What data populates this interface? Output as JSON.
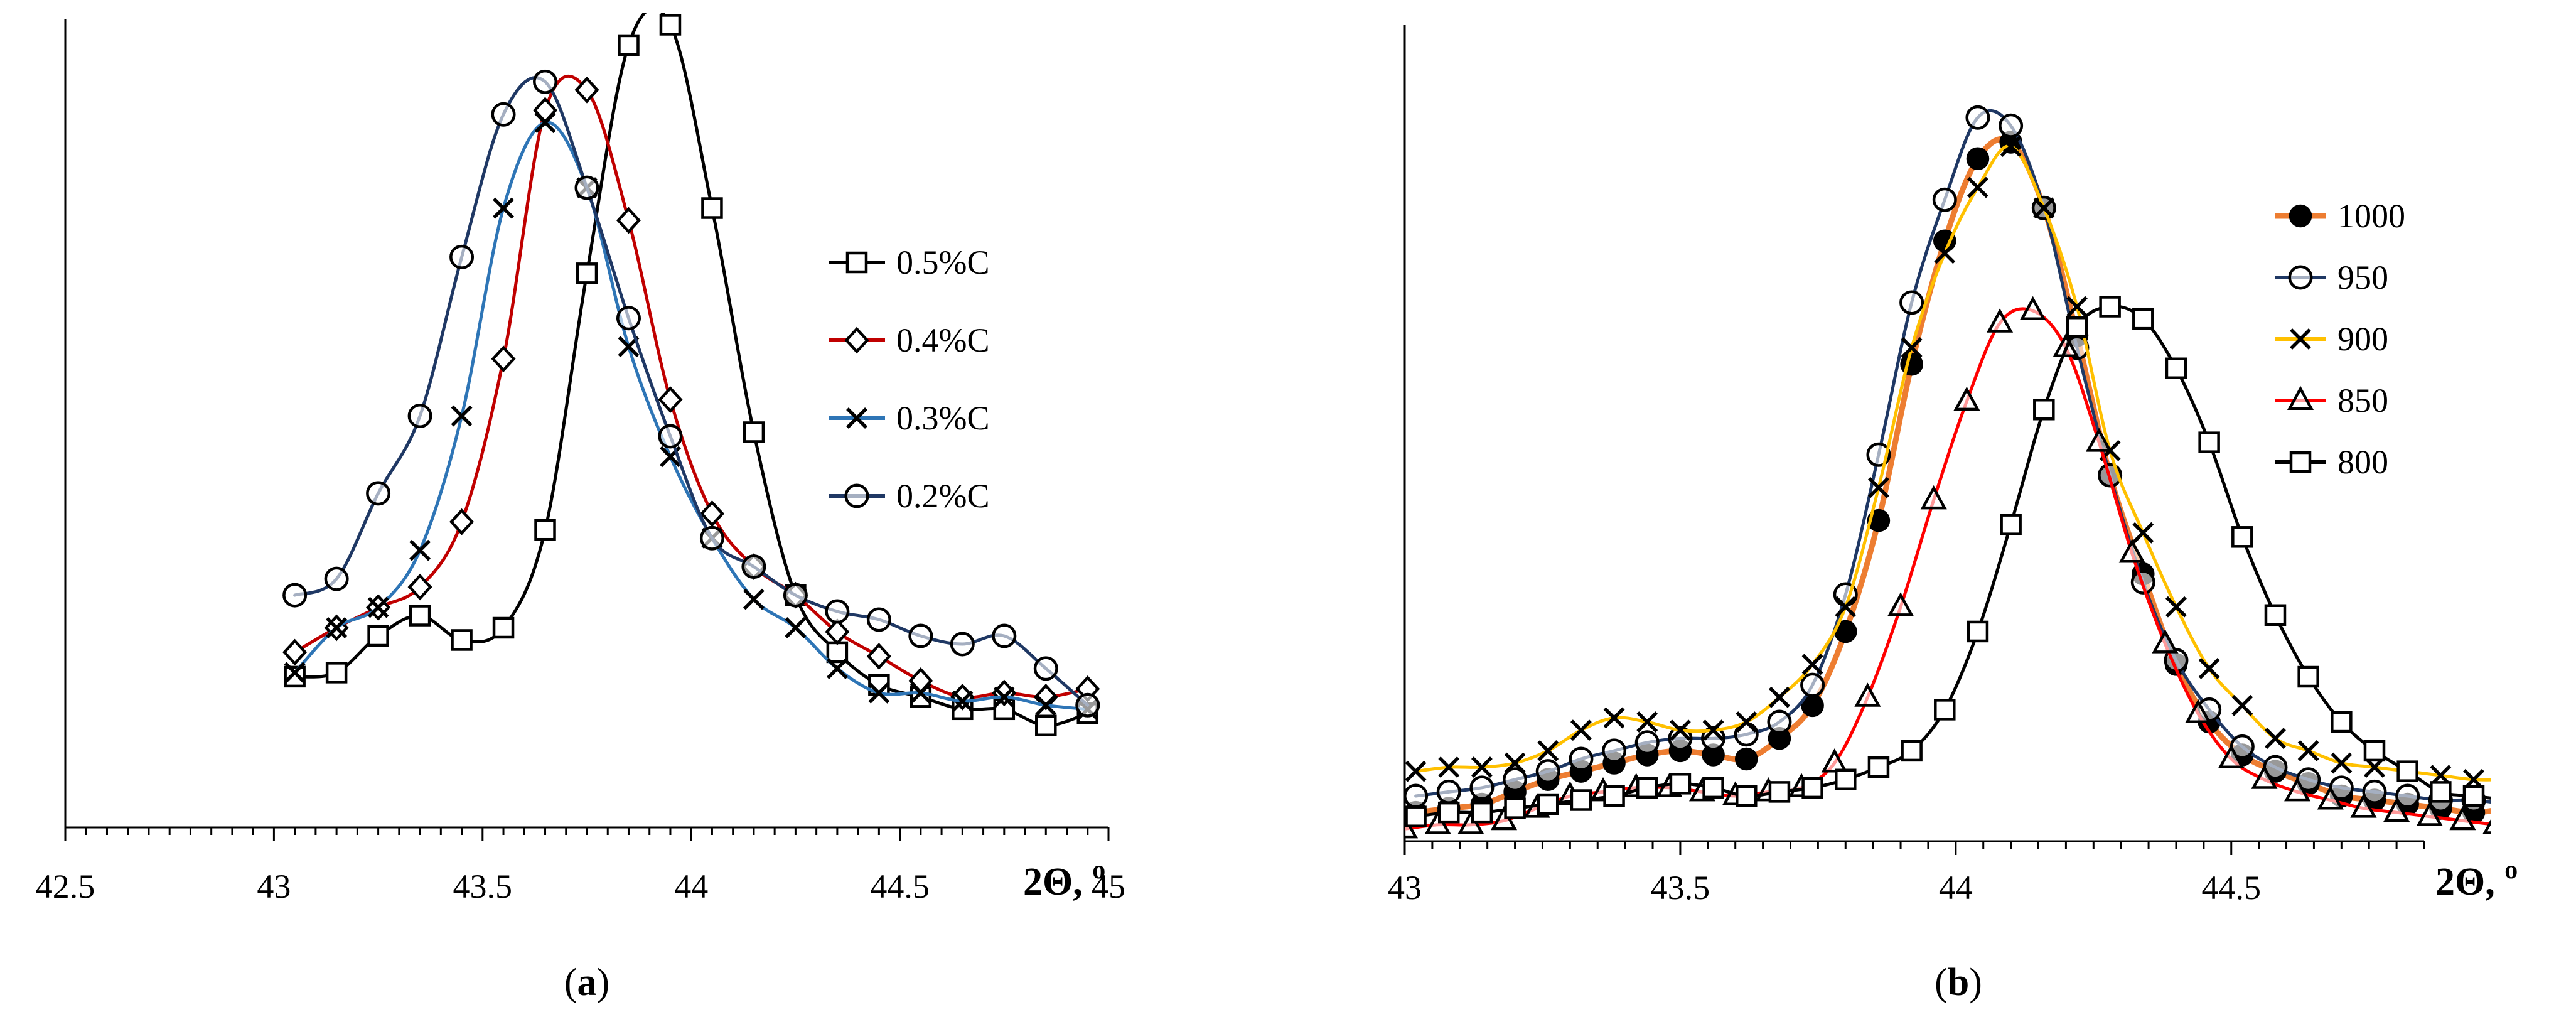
{
  "chart_data": [
    {
      "id": "a",
      "type": "line",
      "caption_letter": "a",
      "xlabel": "2Θ, ",
      "xlabel_unit": "o",
      "xlim": [
        42.5,
        45.0
      ],
      "ylim": [
        0,
        1.0
      ],
      "xticks": [
        42.5,
        43,
        43.5,
        44,
        44.5,
        45
      ],
      "xtick_labels": [
        "42.5",
        "43",
        "43.5",
        "44",
        "44.5",
        "45"
      ],
      "legend_position": "right",
      "series": [
        {
          "name": "0.5%C",
          "color": "#000000",
          "marker": "square",
          "x": [
            43.05,
            43.15,
            43.25,
            43.35,
            43.45,
            43.55,
            43.65,
            43.75,
            43.85,
            43.95,
            44.05,
            44.15,
            44.25,
            44.35,
            44.45,
            44.55,
            44.65,
            44.75,
            44.85,
            44.95
          ],
          "y": [
            0.185,
            0.19,
            0.235,
            0.26,
            0.23,
            0.245,
            0.365,
            0.68,
            0.96,
            0.985,
            0.76,
            0.485,
            0.285,
            0.215,
            0.175,
            0.16,
            0.145,
            0.145,
            0.125,
            0.14
          ]
        },
        {
          "name": "0.4%C",
          "color": "#c00000",
          "marker": "diamond",
          "x": [
            43.05,
            43.15,
            43.25,
            43.35,
            43.45,
            43.55,
            43.65,
            43.75,
            43.85,
            43.95,
            44.05,
            44.15,
            44.25,
            44.35,
            44.45,
            44.55,
            44.65,
            44.75,
            44.85,
            44.95
          ],
          "y": [
            0.215,
            0.245,
            0.27,
            0.295,
            0.375,
            0.575,
            0.88,
            0.905,
            0.745,
            0.525,
            0.385,
            0.32,
            0.285,
            0.24,
            0.21,
            0.18,
            0.16,
            0.165,
            0.16,
            0.17
          ]
        },
        {
          "name": "0.3%C",
          "color": "#2e75b6",
          "marker": "x",
          "x": [
            43.05,
            43.15,
            43.25,
            43.35,
            43.45,
            43.55,
            43.65,
            43.75,
            43.85,
            43.95,
            44.05,
            44.15,
            44.25,
            44.35,
            44.45,
            44.55,
            44.65,
            44.75,
            44.85,
            44.95
          ],
          "y": [
            0.19,
            0.245,
            0.27,
            0.34,
            0.505,
            0.76,
            0.865,
            0.785,
            0.59,
            0.455,
            0.355,
            0.28,
            0.245,
            0.195,
            0.165,
            0.165,
            0.155,
            0.16,
            0.15,
            0.145
          ]
        },
        {
          "name": "0.2%C",
          "color": "#1f3864",
          "marker": "circle",
          "x": [
            43.05,
            43.15,
            43.25,
            43.35,
            43.45,
            43.55,
            43.65,
            43.75,
            43.85,
            43.95,
            44.05,
            44.15,
            44.25,
            44.35,
            44.45,
            44.55,
            44.65,
            44.75,
            44.85,
            44.95
          ],
          "y": [
            0.285,
            0.305,
            0.41,
            0.505,
            0.7,
            0.875,
            0.915,
            0.785,
            0.625,
            0.48,
            0.355,
            0.32,
            0.285,
            0.265,
            0.255,
            0.235,
            0.225,
            0.235,
            0.195,
            0.15
          ]
        }
      ]
    },
    {
      "id": "b",
      "type": "line",
      "caption_letter": "b",
      "xlabel": "2Θ, ",
      "xlabel_unit": "o",
      "xlim": [
        43.0,
        44.85
      ],
      "ylim": [
        0,
        1.0
      ],
      "xticks": [
        43,
        43.5,
        44,
        44.5
      ],
      "xtick_labels": [
        "43",
        "43.5",
        "44",
        "44.5"
      ],
      "legend_position": "right",
      "series": [
        {
          "name": "1000",
          "color": "#ed7d31",
          "marker": "filled-circle",
          "line_width": 9,
          "x": [
            43.02,
            43.08,
            43.14,
            43.2,
            43.26,
            43.32,
            43.38,
            43.44,
            43.5,
            43.56,
            43.62,
            43.68,
            43.74,
            43.8,
            43.86,
            43.92,
            43.98,
            44.04,
            44.1,
            44.16,
            44.22,
            44.28,
            44.34,
            44.4,
            44.46,
            44.52,
            44.58,
            44.64,
            44.7,
            44.76,
            44.82,
            44.88,
            44.94,
            45.0
          ],
          "y": [
            0.035,
            0.04,
            0.045,
            0.06,
            0.075,
            0.085,
            0.095,
            0.105,
            0.11,
            0.105,
            0.1,
            0.125,
            0.165,
            0.255,
            0.39,
            0.58,
            0.73,
            0.83,
            0.85,
            0.77,
            0.615,
            0.445,
            0.325,
            0.215,
            0.145,
            0.105,
            0.085,
            0.07,
            0.055,
            0.05,
            0.045,
            0.04,
            0.035,
            0.04
          ]
        },
        {
          "name": "950",
          "color": "#1f3864",
          "marker": "circle",
          "x": [
            43.02,
            43.08,
            43.14,
            43.2,
            43.26,
            43.32,
            43.38,
            43.44,
            43.5,
            43.56,
            43.62,
            43.68,
            43.74,
            43.8,
            43.86,
            43.92,
            43.98,
            44.04,
            44.1,
            44.16,
            44.22,
            44.28,
            44.34,
            44.4,
            44.46,
            44.52,
            44.58,
            44.64,
            44.7,
            44.76,
            44.82,
            44.88,
            44.94,
            45.0
          ],
          "y": [
            0.055,
            0.06,
            0.065,
            0.075,
            0.085,
            0.1,
            0.11,
            0.12,
            0.125,
            0.125,
            0.13,
            0.145,
            0.19,
            0.3,
            0.47,
            0.655,
            0.78,
            0.88,
            0.87,
            0.77,
            0.6,
            0.445,
            0.315,
            0.22,
            0.16,
            0.115,
            0.09,
            0.075,
            0.065,
            0.06,
            0.055,
            0.05,
            0.05,
            0.045
          ]
        },
        {
          "name": "900",
          "color": "#ffc000",
          "marker": "x",
          "x": [
            43.02,
            43.08,
            43.14,
            43.2,
            43.26,
            43.32,
            43.38,
            43.44,
            43.5,
            43.56,
            43.62,
            43.68,
            43.74,
            43.8,
            43.86,
            43.92,
            43.98,
            44.04,
            44.1,
            44.16,
            44.22,
            44.28,
            44.34,
            44.4,
            44.46,
            44.52,
            44.58,
            44.64,
            44.7,
            44.76,
            44.82,
            44.88,
            44.94,
            45.0
          ],
          "y": [
            0.085,
            0.09,
            0.09,
            0.095,
            0.11,
            0.135,
            0.15,
            0.145,
            0.135,
            0.135,
            0.145,
            0.175,
            0.215,
            0.285,
            0.43,
            0.6,
            0.715,
            0.795,
            0.845,
            0.77,
            0.65,
            0.475,
            0.375,
            0.285,
            0.21,
            0.165,
            0.125,
            0.11,
            0.095,
            0.09,
            0.085,
            0.08,
            0.075,
            0.075
          ]
        },
        {
          "name": "850",
          "color": "#ff0000",
          "marker": "triangle",
          "x": [
            43.0,
            43.06,
            43.12,
            43.18,
            43.24,
            43.3,
            43.36,
            43.42,
            43.48,
            43.54,
            43.6,
            43.66,
            43.72,
            43.78,
            43.84,
            43.9,
            43.96,
            44.02,
            44.08,
            44.14,
            44.2,
            44.26,
            44.32,
            44.38,
            44.44,
            44.5,
            44.56,
            44.62,
            44.68,
            44.74,
            44.8,
            44.86,
            44.92,
            44.98
          ],
          "y": [
            0.015,
            0.02,
            0.02,
            0.025,
            0.04,
            0.055,
            0.06,
            0.065,
            0.065,
            0.06,
            0.055,
            0.06,
            0.065,
            0.095,
            0.175,
            0.285,
            0.415,
            0.535,
            0.63,
            0.645,
            0.6,
            0.485,
            0.35,
            0.24,
            0.155,
            0.1,
            0.075,
            0.06,
            0.05,
            0.04,
            0.035,
            0.03,
            0.025,
            0.02
          ]
        },
        {
          "name": "800",
          "color": "#000000",
          "marker": "square",
          "x": [
            43.02,
            43.08,
            43.14,
            43.2,
            43.26,
            43.32,
            43.38,
            43.44,
            43.5,
            43.56,
            43.62,
            43.68,
            43.74,
            43.8,
            43.86,
            43.92,
            43.98,
            44.04,
            44.1,
            44.16,
            44.22,
            44.28,
            44.34,
            44.4,
            44.46,
            44.52,
            44.58,
            44.64,
            44.7,
            44.76,
            44.82,
            44.88,
            44.94,
            45.0
          ],
          "y": [
            0.03,
            0.035,
            0.035,
            0.04,
            0.045,
            0.05,
            0.055,
            0.065,
            0.07,
            0.065,
            0.055,
            0.06,
            0.065,
            0.075,
            0.09,
            0.11,
            0.16,
            0.255,
            0.385,
            0.525,
            0.625,
            0.65,
            0.635,
            0.575,
            0.485,
            0.37,
            0.275,
            0.2,
            0.145,
            0.11,
            0.085,
            0.06,
            0.055,
            0.05
          ]
        }
      ]
    }
  ]
}
